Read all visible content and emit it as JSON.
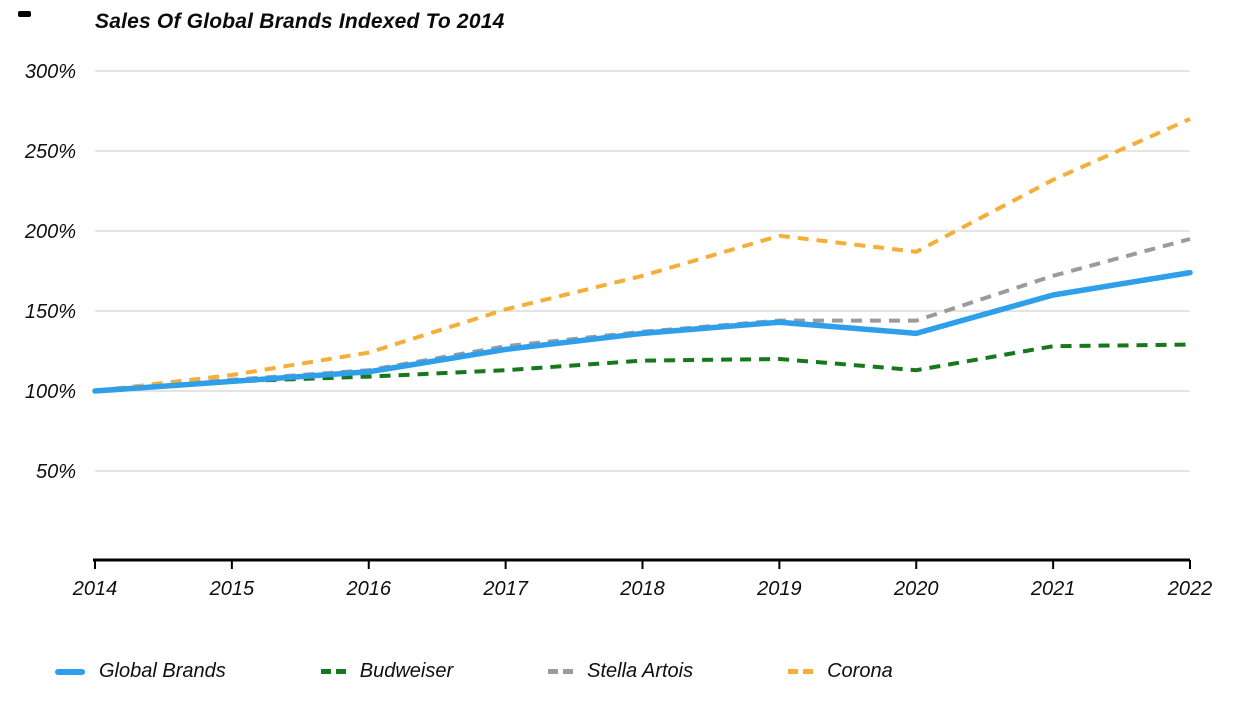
{
  "chart_data": {
    "type": "line",
    "title": "Sales Of Global Brands Indexed To 2014",
    "categories": [
      "2014",
      "2015",
      "2016",
      "2017",
      "2018",
      "2019",
      "2020",
      "2021",
      "2022"
    ],
    "series": [
      {
        "name": "Global Brands",
        "color": "#2E9FE8",
        "style": "solid",
        "values": [
          100,
          106,
          112,
          126,
          136,
          143,
          136,
          160,
          174
        ]
      },
      {
        "name": "Budweiser",
        "color": "#17781B",
        "style": "dashed",
        "values": [
          100,
          106,
          109,
          113,
          119,
          120,
          113,
          128,
          129
        ]
      },
      {
        "name": "Stella Artois",
        "color": "#9B9B9B",
        "style": "dashed",
        "values": [
          100,
          107,
          113,
          128,
          137,
          144,
          144,
          172,
          195
        ]
      },
      {
        "name": "Corona",
        "color": "#F5AE38",
        "style": "dashed",
        "values": [
          100,
          110,
          124,
          151,
          172,
          197,
          187,
          232,
          270
        ]
      }
    ],
    "y_ticks": [
      300,
      250,
      200,
      150,
      100,
      50
    ],
    "y_tick_suffix": "%",
    "ylim": [
      50,
      300
    ],
    "xlabel": "",
    "ylabel": "",
    "grid": true,
    "legend_position": "bottom"
  },
  "colors": {
    "gridline": "#C9C9C9",
    "axis": "#000000",
    "text": "#0F0F0F"
  }
}
